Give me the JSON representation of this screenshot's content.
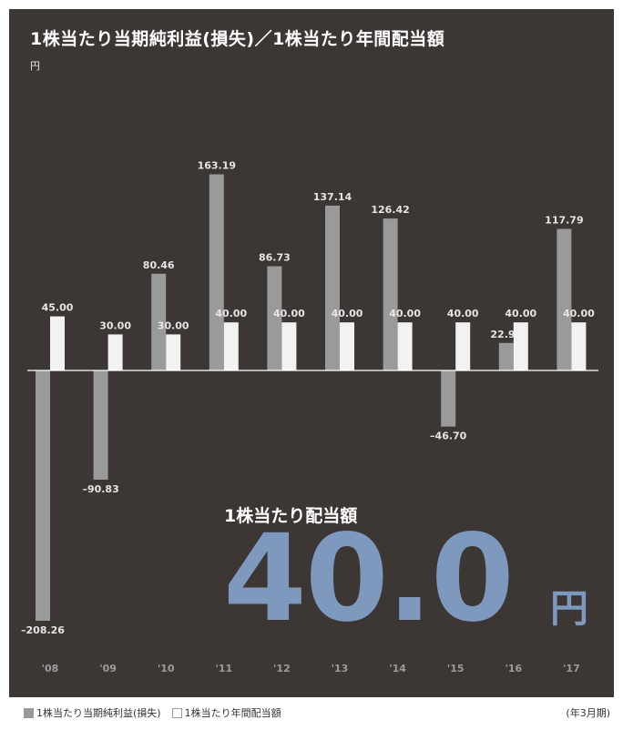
{
  "title": "1株当たり当期純利益(損失)／1株当たり年間配当額",
  "unit_label": "円",
  "highlight": {
    "label": "1株当たり配当額",
    "value": "40.0",
    "unit": "円"
  },
  "period_note": "(年3月期)",
  "colors": {
    "background": "#3c3634",
    "eps": "#9a9a9a",
    "dividend": "#f2f2f2",
    "highlight": "#7f98bd"
  },
  "chart_data": {
    "type": "bar",
    "categories": [
      "'08",
      "'09",
      "'10",
      "'11",
      "'12",
      "'13",
      "'14",
      "'15",
      "'16",
      "'17"
    ],
    "series": [
      {
        "name": "1株当たり当期純利益(損失)",
        "values": [
          -208.26,
          -90.83,
          80.46,
          163.19,
          86.73,
          137.14,
          126.42,
          -46.7,
          22.9,
          117.79
        ],
        "labels": [
          "–208.26",
          "–90.83",
          "80.46",
          "163.19",
          "86.73",
          "137.14",
          "126.42",
          "–46.70",
          "22.90",
          "117.79"
        ]
      },
      {
        "name": "1株当たり年間配当額",
        "values": [
          45.0,
          30.0,
          30.0,
          40.0,
          40.0,
          40.0,
          40.0,
          40.0,
          40.0,
          40.0
        ],
        "labels": [
          "45.00",
          "30.00",
          "30.00",
          "40.00",
          "40.00",
          "40.00",
          "40.00",
          "40.00",
          "40.00",
          "40.00"
        ]
      }
    ],
    "ylim": [
      -208.26,
      163.19
    ],
    "grid": false,
    "legend": "bottom-left"
  }
}
